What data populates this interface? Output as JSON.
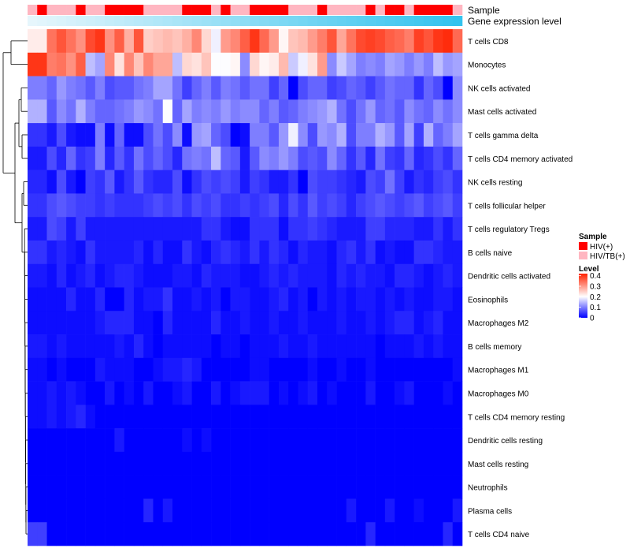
{
  "chart_data": {
    "type": "heatmap",
    "title": "",
    "annotation_rows": [
      {
        "name": "Sample",
        "label": "Sample"
      },
      {
        "name": "Gene expression level",
        "label": "Gene expression level"
      }
    ],
    "rows": [
      "T cells CD8",
      "Monocytes",
      "NK cells activated",
      "Mast cells activated",
      "T cells gamma delta",
      "T cells CD4 memory activated",
      "NK cells resting",
      "T cells follicular helper",
      "T cells regulatory  Tregs",
      "B cells naive",
      "Dendritic cells activated",
      "Eosinophils",
      "Macrophages M2",
      "B cells memory",
      "Macrophages M1",
      "Macrophages M0",
      "T cells CD4 memory resting",
      "Dendritic cells resting",
      "Mast cells resting",
      "Neutrophils",
      "Plasma cells",
      "T cells CD4 naive"
    ],
    "sample_groups": [
      "HIV/TB(+)",
      "HIV(+)",
      "HIV/TB(+)",
      "HIV/TB(+)",
      "HIV/TB(+)",
      "HIV(+)",
      "HIV/TB(+)",
      "HIV/TB(+)",
      "HIV(+)",
      "HIV(+)",
      "HIV(+)",
      "HIV(+)",
      "HIV/TB(+)",
      "HIV/TB(+)",
      "HIV/TB(+)",
      "HIV/TB(+)",
      "HIV(+)",
      "HIV(+)",
      "HIV(+)",
      "HIV/TB(+)",
      "HIV(+)",
      "HIV/TB(+)",
      "HIV/TB(+)",
      "HIV(+)",
      "HIV(+)",
      "HIV(+)",
      "HIV(+)",
      "HIV/TB(+)",
      "HIV/TB(+)",
      "HIV/TB(+)",
      "HIV(+)",
      "HIV/TB(+)",
      "HIV/TB(+)",
      "HIV/TB(+)",
      "HIV/TB(+)",
      "HIV(+)",
      "HIV/TB(+)",
      "HIV(+)",
      "HIV(+)",
      "HIV/TB(+)",
      "HIV(+)",
      "HIV(+)",
      "HIV(+)",
      "HIV(+)",
      "HIV/TB(+)"
    ],
    "gene_expression_level": [
      0,
      0.023,
      0.045,
      0.068,
      0.091,
      0.114,
      0.136,
      0.159,
      0.182,
      0.205,
      0.227,
      0.25,
      0.273,
      0.295,
      0.318,
      0.341,
      0.364,
      0.386,
      0.409,
      0.432,
      0.455,
      0.477,
      0.5,
      0.523,
      0.545,
      0.568,
      0.591,
      0.614,
      0.636,
      0.659,
      0.682,
      0.705,
      0.727,
      0.75,
      0.773,
      0.795,
      0.818,
      0.841,
      0.864,
      0.886,
      0.909,
      0.932,
      0.955,
      0.977,
      1
    ],
    "values": [
      [
        0.22,
        0.22,
        0.34,
        0.37,
        0.34,
        0.31,
        0.38,
        0.4,
        0.31,
        0.36,
        0.28,
        0.37,
        0.25,
        0.26,
        0.27,
        0.26,
        0.28,
        0.32,
        0.24,
        0.19,
        0.3,
        0.32,
        0.36,
        0.4,
        0.35,
        0.3,
        0.21,
        0.26,
        0.27,
        0.3,
        0.33,
        0.37,
        0.29,
        0.34,
        0.38,
        0.39,
        0.38,
        0.36,
        0.35,
        0.33,
        0.39,
        0.37,
        0.4,
        0.41,
        0.35
      ],
      [
        0.4,
        0.4,
        0.33,
        0.34,
        0.31,
        0.36,
        0.15,
        0.13,
        0.32,
        0.23,
        0.32,
        0.26,
        0.32,
        0.29,
        0.29,
        0.15,
        0.24,
        0.23,
        0.26,
        0.2,
        0.2,
        0.21,
        0.11,
        0.24,
        0.21,
        0.22,
        0.27,
        0.16,
        0.19,
        0.23,
        0.3,
        0.11,
        0.16,
        0.13,
        0.1,
        0.11,
        0.1,
        0.13,
        0.12,
        0.1,
        0.12,
        0.1,
        0.15,
        0.12,
        0.13
      ],
      [
        0.1,
        0.1,
        0.08,
        0.12,
        0.1,
        0.09,
        0.07,
        0.1,
        0.06,
        0.07,
        0.07,
        0.09,
        0.1,
        0.13,
        0.13,
        0.09,
        0.05,
        0.08,
        0.1,
        0.07,
        0.1,
        0.09,
        0.07,
        0.09,
        0.09,
        0.05,
        0.08,
        0.0,
        0.06,
        0.08,
        0.08,
        0.05,
        0.06,
        0.08,
        0.07,
        0.05,
        0.07,
        0.09,
        0.08,
        0.08,
        0.04,
        0.08,
        0.06,
        0.0,
        0.11
      ],
      [
        0.14,
        0.14,
        0.07,
        0.11,
        0.09,
        0.14,
        0.1,
        0.08,
        0.08,
        0.09,
        0.1,
        0.12,
        0.11,
        0.09,
        0.2,
        0.08,
        0.13,
        0.1,
        0.11,
        0.1,
        0.12,
        0.1,
        0.11,
        0.11,
        0.08,
        0.1,
        0.07,
        0.08,
        0.1,
        0.11,
        0.12,
        0.14,
        0.09,
        0.06,
        0.09,
        0.12,
        0.08,
        0.09,
        0.07,
        0.11,
        0.09,
        0.08,
        0.11,
        0.09,
        0.11
      ],
      [
        0.04,
        0.04,
        0.02,
        0.06,
        0.02,
        0.01,
        0.01,
        0.1,
        0.01,
        0.08,
        0.01,
        0.01,
        0.06,
        0.09,
        0.06,
        0.11,
        0.01,
        0.12,
        0.13,
        0.08,
        0.06,
        0.0,
        0.01,
        0.1,
        0.1,
        0.07,
        0.12,
        0.19,
        0.11,
        0.06,
        0.12,
        0.11,
        0.14,
        0.06,
        0.1,
        0.1,
        0.14,
        0.12,
        0.07,
        0.13,
        0.05,
        0.14,
        0.08,
        0.1,
        0.13
      ],
      [
        0.02,
        0.02,
        0.06,
        0.03,
        0.08,
        0.04,
        0.05,
        0.1,
        0.03,
        0.07,
        0.04,
        0.09,
        0.06,
        0.08,
        0.06,
        0.03,
        0.09,
        0.1,
        0.09,
        0.15,
        0.08,
        0.07,
        0.02,
        0.07,
        0.11,
        0.1,
        0.12,
        0.1,
        0.06,
        0.07,
        0.06,
        0.11,
        0.08,
        0.04,
        0.07,
        0.03,
        0.09,
        0.05,
        0.04,
        0.08,
        0.03,
        0.04,
        0.06,
        0.04,
        0.08
      ],
      [
        0.03,
        0.03,
        0.01,
        0.06,
        0.02,
        0.0,
        0.05,
        0.04,
        0.07,
        0.02,
        0.04,
        0.07,
        0.04,
        0.03,
        0.03,
        0.06,
        0.01,
        0.04,
        0.06,
        0.05,
        0.06,
        0.05,
        0.02,
        0.05,
        0.04,
        0.02,
        0.02,
        0.04,
        0.0,
        0.06,
        0.05,
        0.05,
        0.04,
        0.03,
        0.02,
        0.06,
        0.05,
        0.09,
        0.05,
        0.02,
        0.04,
        0.03,
        0.05,
        0.06,
        0.04
      ],
      [
        0.04,
        0.04,
        0.06,
        0.07,
        0.06,
        0.05,
        0.05,
        0.04,
        0.05,
        0.04,
        0.04,
        0.04,
        0.05,
        0.06,
        0.05,
        0.06,
        0.04,
        0.06,
        0.05,
        0.06,
        0.04,
        0.04,
        0.05,
        0.04,
        0.05,
        0.06,
        0.03,
        0.06,
        0.04,
        0.07,
        0.05,
        0.06,
        0.05,
        0.03,
        0.05,
        0.06,
        0.07,
        0.06,
        0.05,
        0.06,
        0.07,
        0.05,
        0.06,
        0.07,
        0.05
      ],
      [
        0.02,
        0.02,
        0.06,
        0.05,
        0.02,
        0.05,
        0.02,
        0.02,
        0.02,
        0.02,
        0.02,
        0.02,
        0.02,
        0.02,
        0.02,
        0.02,
        0.02,
        0.02,
        0.04,
        0.04,
        0.02,
        0.01,
        0.01,
        0.04,
        0.04,
        0.04,
        0.01,
        0.04,
        0.04,
        0.05,
        0.04,
        0.03,
        0.02,
        0.02,
        0.02,
        0.05,
        0.05,
        0.03,
        0.03,
        0.03,
        0.02,
        0.02,
        0.04,
        0.02,
        0.04
      ],
      [
        0.04,
        0.04,
        0.02,
        0.03,
        0.02,
        0.01,
        0.04,
        0.02,
        0.02,
        0.02,
        0.02,
        0.03,
        0.01,
        0.03,
        0.01,
        0.01,
        0.04,
        0.02,
        0.01,
        0.03,
        0.04,
        0.03,
        0.02,
        0.04,
        0.02,
        0.04,
        0.03,
        0.01,
        0.03,
        0.02,
        0.02,
        0.01,
        0.03,
        0.04,
        0.02,
        0.04,
        0.01,
        0.02,
        0.01,
        0.01,
        0.04,
        0.04,
        0.03,
        0.02,
        0.02
      ],
      [
        0.02,
        0.02,
        0.01,
        0.03,
        0.01,
        0.02,
        0.03,
        0.01,
        0.02,
        0.03,
        0.03,
        0.02,
        0.01,
        0.01,
        0.01,
        0.02,
        0.02,
        0.01,
        0.03,
        0.02,
        0.02,
        0.02,
        0.01,
        0.01,
        0.02,
        0.03,
        0.02,
        0.03,
        0.02,
        0.02,
        0.02,
        0.01,
        0.03,
        0.02,
        0.03,
        0.02,
        0.02,
        0.01,
        0.03,
        0.03,
        0.02,
        0.01,
        0.02,
        0.03,
        0.02
      ],
      [
        0.01,
        0.01,
        0.01,
        0.01,
        0.03,
        0.01,
        0.01,
        0.03,
        0.0,
        0.0,
        0.03,
        0.01,
        0.02,
        0.02,
        0.04,
        0.01,
        0.01,
        0.02,
        0.01,
        0.02,
        0.0,
        0.02,
        0.02,
        0.01,
        0.01,
        0.02,
        0.03,
        0.01,
        0.02,
        0.0,
        0.02,
        0.01,
        0.02,
        0.01,
        0.02,
        0.02,
        0.01,
        0.02,
        0.01,
        0.02,
        0.01,
        0.01,
        0.02,
        0.02,
        0.01
      ],
      [
        0.01,
        0.01,
        0.01,
        0.01,
        0.01,
        0.01,
        0.01,
        0.02,
        0.03,
        0.03,
        0.03,
        0.01,
        0.01,
        0.0,
        0.03,
        0.01,
        0.01,
        0.01,
        0.01,
        0.03,
        0.01,
        0.01,
        0.02,
        0.01,
        0.01,
        0.02,
        0.01,
        0.01,
        0.02,
        0.01,
        0.01,
        0.01,
        0.02,
        0.01,
        0.01,
        0.02,
        0.01,
        0.02,
        0.03,
        0.03,
        0.01,
        0.02,
        0.03,
        0.01,
        0.01
      ],
      [
        0.02,
        0.02,
        0.01,
        0.02,
        0.01,
        0.01,
        0.01,
        0.01,
        0.01,
        0.02,
        0.01,
        0.03,
        0.01,
        0.0,
        0.01,
        0.01,
        0.01,
        0.01,
        0.01,
        0.0,
        0.01,
        0.01,
        0.0,
        0.01,
        0.01,
        0.01,
        0.02,
        0.01,
        0.01,
        0.02,
        0.01,
        0.01,
        0.01,
        0.01,
        0.01,
        0.01,
        0.0,
        0.01,
        0.01,
        0.01,
        0.02,
        0.01,
        0.02,
        0.01,
        0.01
      ],
      [
        0.01,
        0.01,
        0.0,
        0.01,
        0.0,
        0.0,
        0.0,
        0.02,
        0.01,
        0.01,
        0.01,
        0.0,
        0.0,
        0.01,
        0.02,
        0.02,
        0.03,
        0.02,
        0.0,
        0.0,
        0.0,
        0.0,
        0.0,
        0.01,
        0.01,
        0.0,
        0.0,
        0.0,
        0.0,
        0.01,
        0.0,
        0.0,
        0.01,
        0.0,
        0.0,
        0.01,
        0.0,
        0.0,
        0.0,
        0.0,
        0.0,
        0.0,
        0.0,
        0.0,
        0.01
      ],
      [
        0.01,
        0.01,
        0.02,
        0.01,
        0.02,
        0.01,
        0.0,
        0.0,
        0.02,
        0.0,
        0.01,
        0.0,
        0.02,
        0.0,
        0.0,
        0.01,
        0.02,
        0.0,
        0.0,
        0.02,
        0.0,
        0.01,
        0.02,
        0.02,
        0.02,
        0.0,
        0.01,
        0.0,
        0.01,
        0.02,
        0.0,
        0.01,
        0.0,
        0.0,
        0.0,
        0.02,
        0.0,
        0.0,
        0.01,
        0.02,
        0.0,
        0.0,
        0.0,
        0.01,
        0.0
      ],
      [
        0.01,
        0.01,
        0.02,
        0.01,
        0.02,
        0.03,
        0.01,
        0.0,
        0.0,
        0.0,
        0.0,
        0.0,
        0.0,
        0.0,
        0.0,
        0.0,
        0.0,
        0.0,
        0.0,
        0.0,
        0.0,
        0.0,
        0.0,
        0.0,
        0.0,
        0.0,
        0.0,
        0.0,
        0.0,
        0.0,
        0.0,
        0.0,
        0.0,
        0.0,
        0.0,
        0.0,
        0.0,
        0.0,
        0.0,
        0.0,
        0.0,
        0.0,
        0.0,
        0.0,
        0.0
      ],
      [
        0.0,
        0.0,
        0.0,
        0.0,
        0.0,
        0.0,
        0.0,
        0.0,
        0.0,
        0.02,
        0.0,
        0.0,
        0.0,
        0.0,
        0.0,
        0.0,
        0.01,
        0.0,
        0.01,
        0.0,
        0.0,
        0.0,
        0.0,
        0.0,
        0.0,
        0.0,
        0.0,
        0.0,
        0.0,
        0.0,
        0.0,
        0.0,
        0.0,
        0.0,
        0.0,
        0.0,
        0.0,
        0.0,
        0.0,
        0.0,
        0.0,
        0.0,
        0.0,
        0.0,
        0.0
      ],
      [
        0.0,
        0.0,
        0.0,
        0.0,
        0.0,
        0.0,
        0.0,
        0.0,
        0.0,
        0.0,
        0.0,
        0.0,
        0.0,
        0.0,
        0.0,
        0.0,
        0.0,
        0.0,
        0.0,
        0.0,
        0.0,
        0.0,
        0.0,
        0.0,
        0.0,
        0.0,
        0.0,
        0.0,
        0.0,
        0.0,
        0.0,
        0.0,
        0.0,
        0.0,
        0.0,
        0.0,
        0.0,
        0.0,
        0.0,
        0.0,
        0.0,
        0.0,
        0.0,
        0.0,
        0.0
      ],
      [
        0.0,
        0.0,
        0.0,
        0.0,
        0.0,
        0.0,
        0.0,
        0.0,
        0.0,
        0.0,
        0.0,
        0.0,
        0.0,
        0.0,
        0.0,
        0.0,
        0.0,
        0.0,
        0.0,
        0.0,
        0.0,
        0.0,
        0.0,
        0.0,
        0.0,
        0.0,
        0.0,
        0.0,
        0.0,
        0.0,
        0.0,
        0.0,
        0.0,
        0.0,
        0.0,
        0.0,
        0.0,
        0.0,
        0.0,
        0.0,
        0.0,
        0.0,
        0.0,
        0.0,
        0.0
      ],
      [
        0.0,
        0.0,
        0.0,
        0.0,
        0.0,
        0.0,
        0.0,
        0.0,
        0.0,
        0.0,
        0.0,
        0.0,
        0.03,
        0.0,
        0.02,
        0.0,
        0.0,
        0.0,
        0.0,
        0.0,
        0.0,
        0.0,
        0.0,
        0.0,
        0.0,
        0.0,
        0.0,
        0.0,
        0.0,
        0.0,
        0.0,
        0.0,
        0.0,
        0.02,
        0.0,
        0.0,
        0.0,
        0.02,
        0.0,
        0.0,
        0.01,
        0.0,
        0.0,
        0.0,
        0.02
      ],
      [
        0.05,
        0.05,
        0.0,
        0.0,
        0.0,
        0.0,
        0.0,
        0.0,
        0.0,
        0.0,
        0.0,
        0.0,
        0.0,
        0.0,
        0.0,
        0.0,
        0.0,
        0.0,
        0.0,
        0.0,
        0.0,
        0.0,
        0.0,
        0.0,
        0.0,
        0.0,
        0.0,
        0.0,
        0.0,
        0.0,
        0.0,
        0.0,
        0.0,
        0.0,
        0.0,
        0.03,
        0.0,
        0.0,
        0.0,
        0.0,
        0.0,
        0.0,
        0.0,
        0.03,
        0.0
      ]
    ],
    "legend": {
      "position": "right",
      "sample_title": "Sample",
      "sample_entries": [
        {
          "label": "HIV(+)",
          "color": "#ff0000"
        },
        {
          "label": "HIV/TB(+)",
          "color": "#ffb6c1"
        }
      ],
      "level_title": "Level",
      "level_ticks": [
        "0.4",
        "0.3",
        "0.2",
        "0.1",
        "0"
      ],
      "level_tick_values": [
        0.4,
        0.3,
        0.2,
        0.1,
        0
      ],
      "range": [
        0,
        0.42
      ]
    },
    "colors": {
      "low": "#0000ff",
      "mid": "#ffffff",
      "high": "#ff2200",
      "gene_low": "#e6f6fc",
      "gene_high": "#33c3ee"
    },
    "dendrogram": "rows clustered (hierarchical)"
  }
}
